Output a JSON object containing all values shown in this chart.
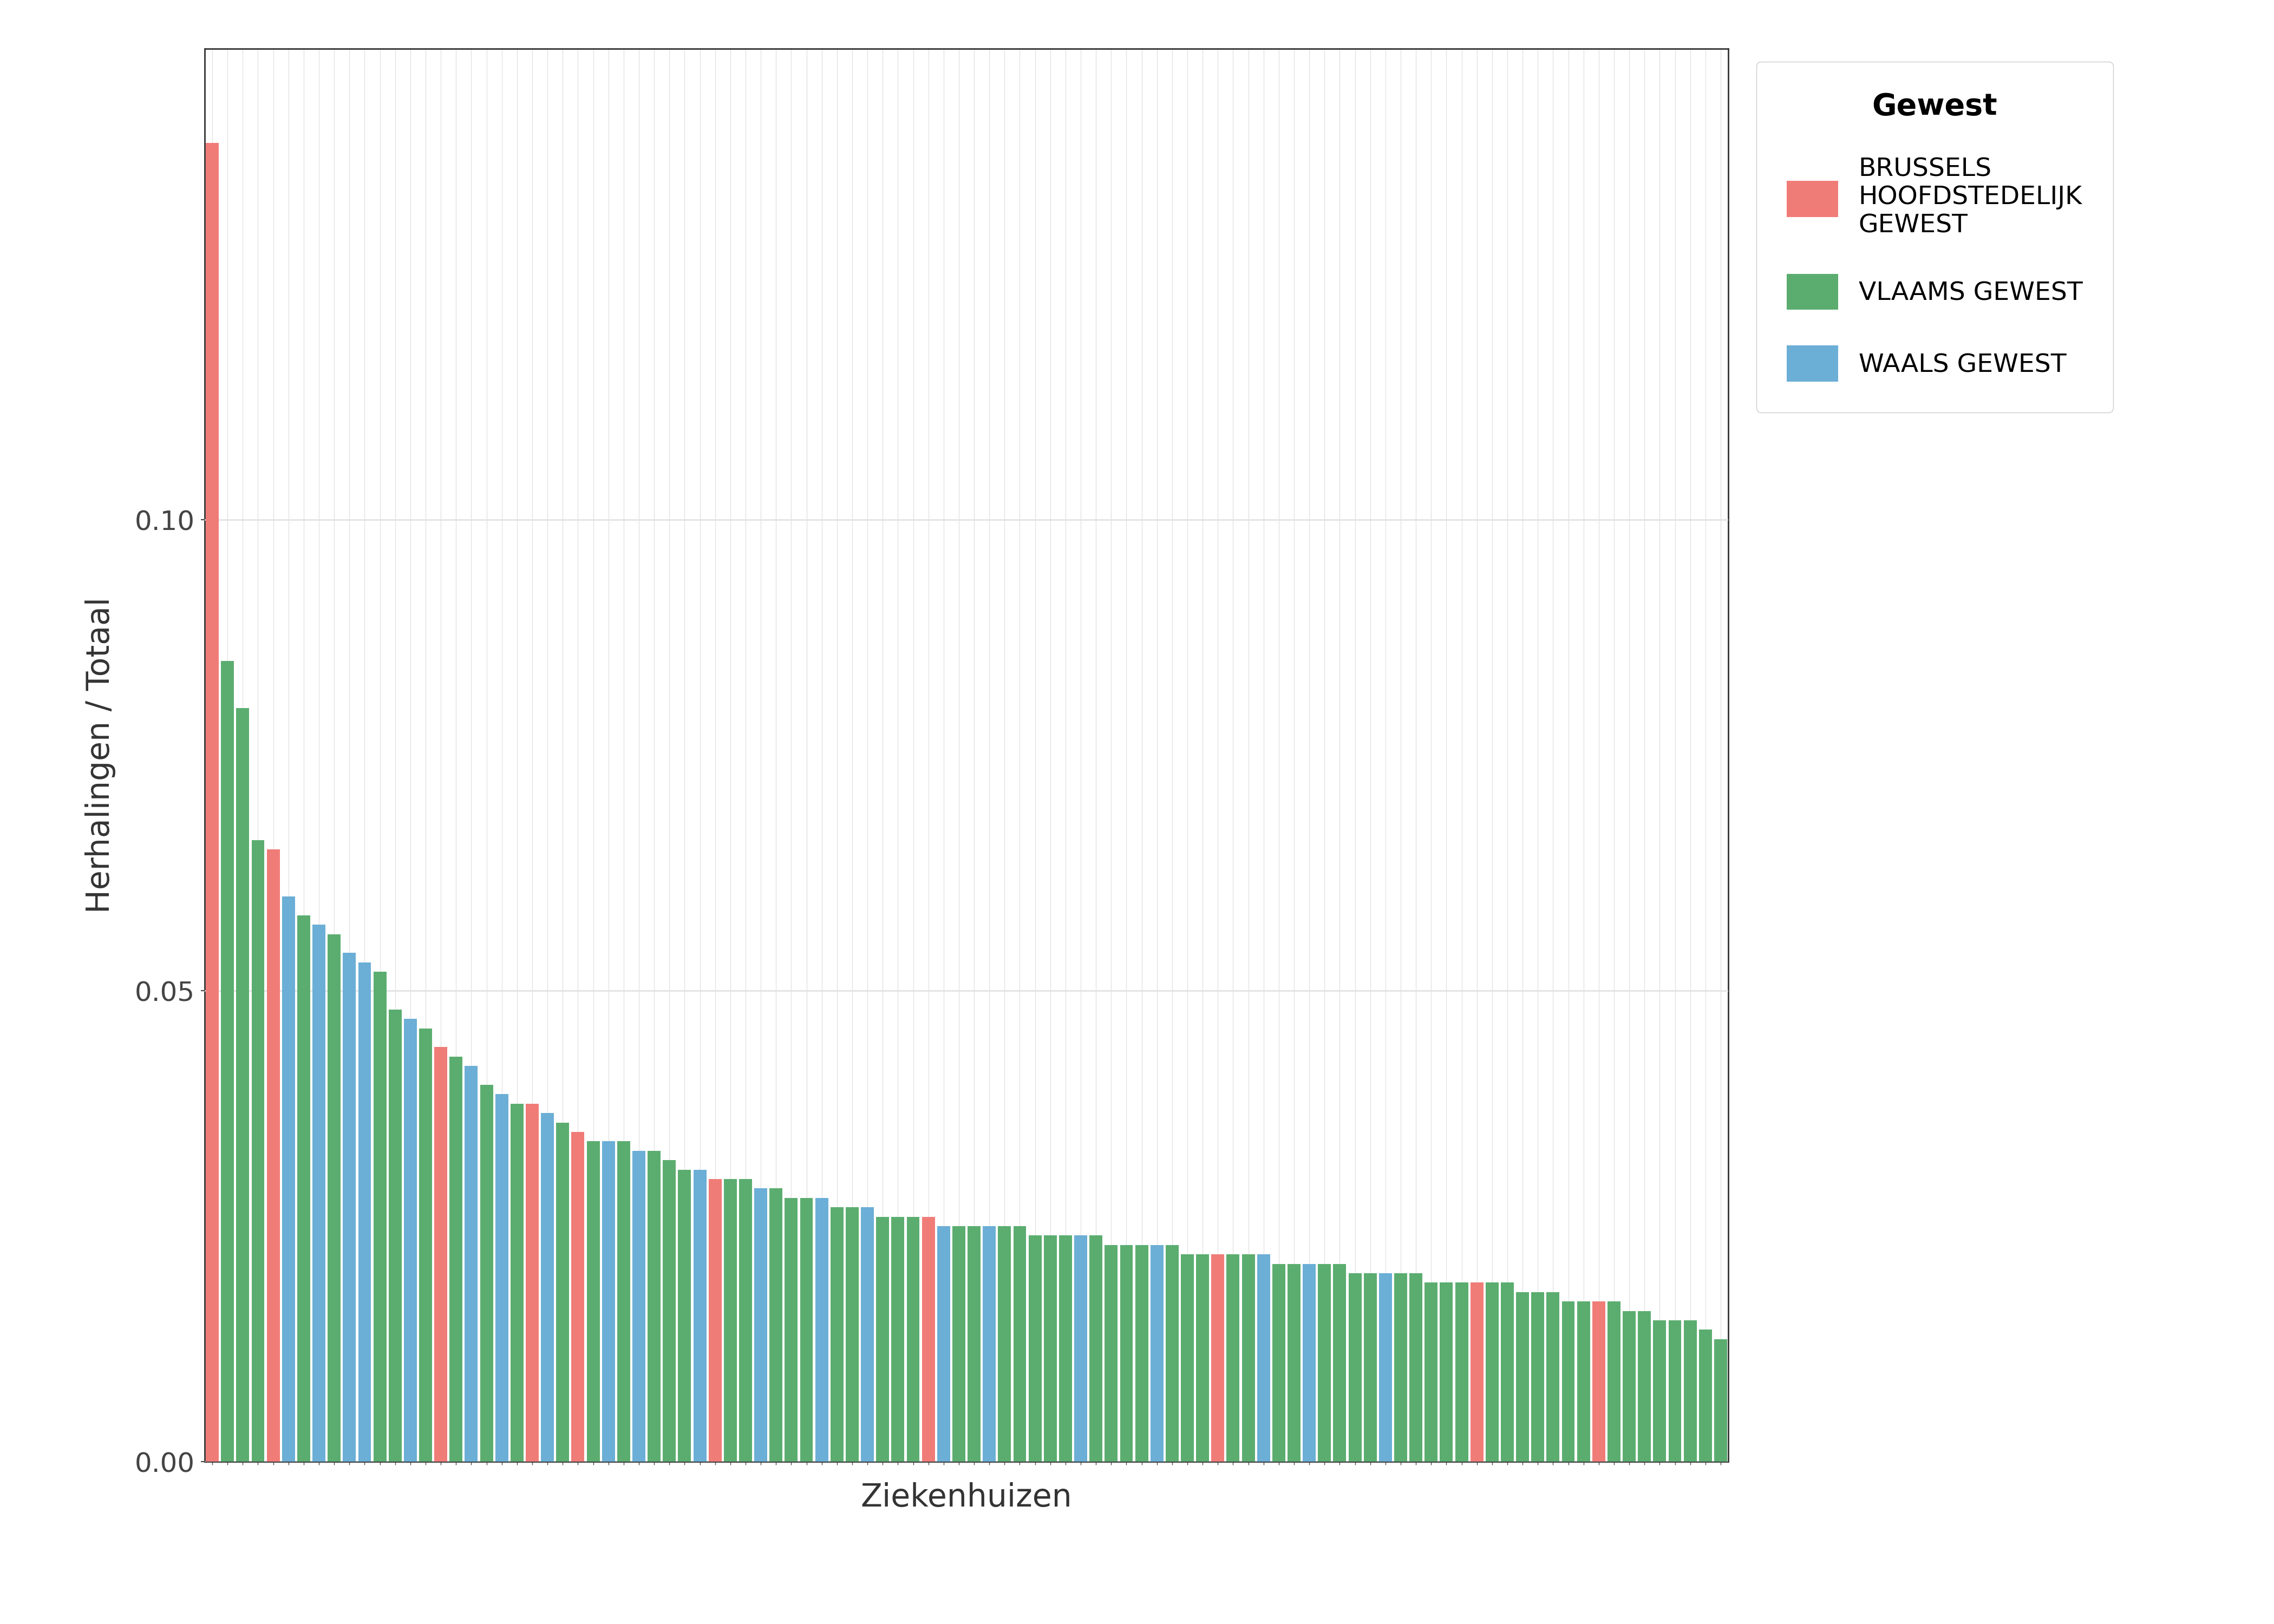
{
  "ylabel": "Herhalingen / Totaal",
  "xlabel": "Ziekenhuizen",
  "legend_title": "Gewest",
  "legend_labels": [
    "BRUSSELS\nHOOFDSTEDELIJK\nGEWEST",
    "VLAAMS GEWEST",
    "WAALS GEWEST"
  ],
  "legend_colors": [
    "#F07C78",
    "#5BAD6F",
    "#6BAED6"
  ],
  "background_color": "#FFFFFF",
  "panel_bg": "#FFFFFF",
  "grid_color": "#E0E0E0",
  "border_color": "#333333",
  "bar_colors": [
    "#F07C78",
    "#5BAD6F",
    "#5BAD6F",
    "#5BAD6F",
    "#F07C78",
    "#6BAED6",
    "#5BAD6F",
    "#6BAED6",
    "#5BAD6F",
    "#6BAED6",
    "#6BAED6",
    "#5BAD6F",
    "#5BAD6F",
    "#6BAED6",
    "#5BAD6F",
    "#F07C78",
    "#5BAD6F",
    "#6BAED6",
    "#5BAD6F",
    "#6BAED6",
    "#5BAD6F",
    "#F07C78",
    "#6BAED6",
    "#5BAD6F",
    "#F07C78",
    "#5BAD6F",
    "#6BAED6",
    "#5BAD6F",
    "#6BAED6",
    "#5BAD6F",
    "#5BAD6F",
    "#5BAD6F",
    "#6BAED6",
    "#F07C78",
    "#5BAD6F",
    "#5BAD6F",
    "#6BAED6",
    "#5BAD6F",
    "#5BAD6F",
    "#5BAD6F",
    "#6BAED6",
    "#5BAD6F",
    "#5BAD6F",
    "#6BAED6",
    "#5BAD6F",
    "#5BAD6F",
    "#5BAD6F",
    "#F07C78",
    "#6BAED6",
    "#5BAD6F",
    "#5BAD6F",
    "#6BAED6",
    "#5BAD6F",
    "#5BAD6F",
    "#5BAD6F",
    "#5BAD6F",
    "#5BAD6F",
    "#6BAED6",
    "#5BAD6F",
    "#5BAD6F",
    "#5BAD6F",
    "#5BAD6F",
    "#6BAED6",
    "#5BAD6F",
    "#5BAD6F",
    "#5BAD6F",
    "#F07C78",
    "#5BAD6F",
    "#5BAD6F",
    "#6BAED6",
    "#5BAD6F",
    "#5BAD6F",
    "#6BAED6",
    "#5BAD6F",
    "#5BAD6F",
    "#5BAD6F",
    "#5BAD6F",
    "#6BAED6",
    "#5BAD6F",
    "#5BAD6F",
    "#5BAD6F",
    "#5BAD6F",
    "#5BAD6F",
    "#F07C78",
    "#5BAD6F",
    "#5BAD6F",
    "#5BAD6F",
    "#5BAD6F",
    "#5BAD6F",
    "#5BAD6F",
    "#5BAD6F",
    "#F07C78",
    "#5BAD6F",
    "#5BAD6F",
    "#5BAD6F",
    "#5BAD6F",
    "#5BAD6F",
    "#5BAD6F",
    "#5BAD6F",
    "#5BAD6F"
  ],
  "bar_values": [
    0.14,
    0.085,
    0.08,
    0.066,
    0.065,
    0.06,
    0.058,
    0.057,
    0.056,
    0.054,
    0.053,
    0.052,
    0.048,
    0.047,
    0.046,
    0.044,
    0.043,
    0.042,
    0.04,
    0.039,
    0.038,
    0.038,
    0.037,
    0.036,
    0.035,
    0.034,
    0.034,
    0.034,
    0.033,
    0.033,
    0.032,
    0.031,
    0.031,
    0.03,
    0.03,
    0.03,
    0.029,
    0.029,
    0.028,
    0.028,
    0.028,
    0.027,
    0.027,
    0.027,
    0.026,
    0.026,
    0.026,
    0.026,
    0.025,
    0.025,
    0.025,
    0.025,
    0.025,
    0.025,
    0.024,
    0.024,
    0.024,
    0.024,
    0.024,
    0.023,
    0.023,
    0.023,
    0.023,
    0.023,
    0.022,
    0.022,
    0.022,
    0.022,
    0.022,
    0.022,
    0.021,
    0.021,
    0.021,
    0.021,
    0.021,
    0.02,
    0.02,
    0.02,
    0.02,
    0.02,
    0.019,
    0.019,
    0.019,
    0.019,
    0.019,
    0.019,
    0.018,
    0.018,
    0.018,
    0.017,
    0.017,
    0.017,
    0.017,
    0.016,
    0.016,
    0.015,
    0.015,
    0.015,
    0.014,
    0.013
  ],
  "ylim": [
    0.0,
    0.15
  ],
  "yticks": [
    0.0,
    0.05,
    0.1
  ],
  "axis_color": "#333333",
  "tick_color": "#444444",
  "font_family": "DejaVu Sans",
  "label_fontsize": 42,
  "tick_fontsize": 36,
  "legend_title_fontsize": 40,
  "legend_fontsize": 34
}
